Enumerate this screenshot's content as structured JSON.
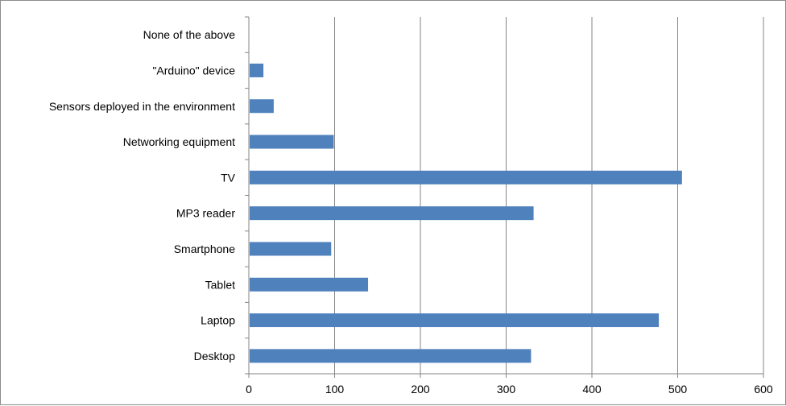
{
  "chart_data": {
    "type": "bar",
    "orientation": "horizontal",
    "title": "",
    "xlabel": "",
    "ylabel": "",
    "categories": [
      "Desktop",
      "Laptop",
      "Tablet",
      "Smartphone",
      "MP3 reader",
      "TV",
      "Networking equipment",
      "Sensors  deployed in the environment",
      "\"Arduino\" device",
      "None of the above"
    ],
    "values": [
      329,
      478,
      139,
      96,
      332,
      505,
      99,
      29,
      17,
      0
    ],
    "xlim": [
      0,
      600
    ],
    "xticks": [
      "0",
      "100",
      "200",
      "300",
      "400",
      "500",
      "600"
    ],
    "grid": "vertical",
    "legend": "none",
    "colors": {
      "bar": "#4f81bd",
      "grid": "#868686",
      "axis": "#868686"
    }
  }
}
